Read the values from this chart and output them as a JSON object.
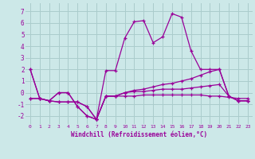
{
  "bg_color": "#cce8e8",
  "grid_color": "#aacccc",
  "line_color": "#990099",
  "xlim": [
    -0.5,
    23.5
  ],
  "ylim": [
    -2.7,
    7.7
  ],
  "xticks": [
    0,
    1,
    2,
    3,
    4,
    5,
    6,
    7,
    8,
    9,
    10,
    11,
    12,
    13,
    14,
    15,
    16,
    17,
    18,
    19,
    20,
    21,
    22,
    23
  ],
  "yticks": [
    -2,
    -1,
    0,
    1,
    2,
    3,
    4,
    5,
    6,
    7
  ],
  "xlabel": "Windchill (Refroidissement éolien,°C)",
  "series": [
    [
      2.0,
      -0.5,
      -0.7,
      0.0,
      0.0,
      -1.2,
      -2.0,
      -2.3,
      -0.3,
      -0.3,
      -0.3,
      -0.3,
      -0.2,
      -0.2,
      -0.2,
      -0.2,
      -0.2,
      -0.2,
      -0.2,
      -0.3,
      -0.3,
      -0.4,
      -0.5,
      -0.5
    ],
    [
      2.0,
      -0.5,
      -0.7,
      0.0,
      0.0,
      -1.2,
      -2.0,
      -2.3,
      1.9,
      1.9,
      4.7,
      6.1,
      6.2,
      4.3,
      4.8,
      6.8,
      6.5,
      3.6,
      2.0,
      2.0,
      2.0,
      -0.3,
      -0.7,
      -0.7
    ],
    [
      -0.5,
      -0.5,
      -0.7,
      -0.8,
      -0.8,
      -0.8,
      -1.2,
      -2.3,
      -0.3,
      -0.3,
      0.0,
      0.1,
      0.1,
      0.2,
      0.3,
      0.3,
      0.3,
      0.4,
      0.5,
      0.6,
      0.7,
      -0.3,
      -0.7,
      -0.7
    ],
    [
      -0.5,
      -0.5,
      -0.7,
      -0.8,
      -0.8,
      -0.8,
      -1.2,
      -2.3,
      -0.3,
      -0.3,
      0.0,
      0.2,
      0.3,
      0.5,
      0.7,
      0.8,
      1.0,
      1.2,
      1.5,
      1.8,
      2.0,
      -0.3,
      -0.7,
      -0.7
    ]
  ]
}
